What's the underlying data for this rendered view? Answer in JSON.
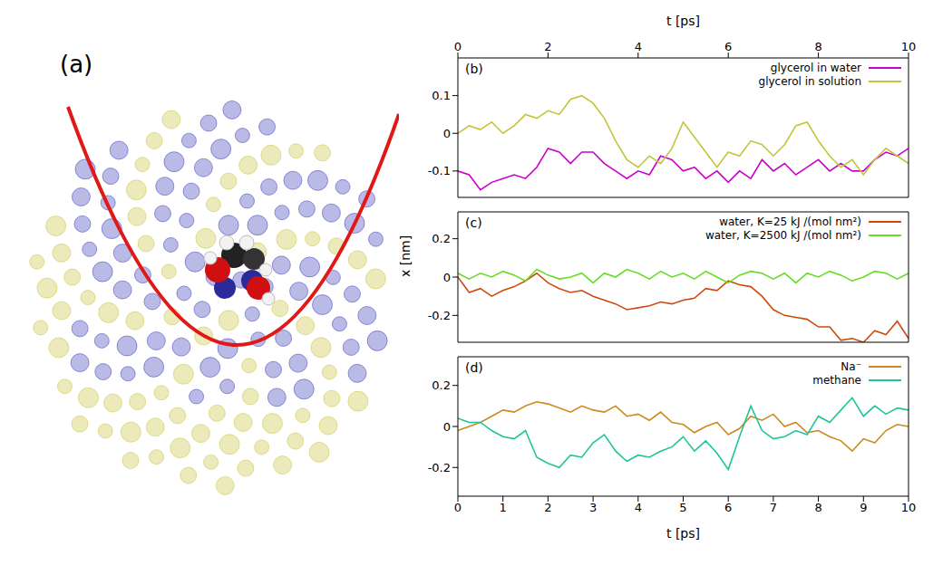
{
  "illustration": {
    "label": "(a)"
  },
  "chart_data": [
    {
      "type": "line",
      "title": "(b)",
      "x2label": "t [ps]",
      "x2ticks": [
        0,
        2,
        4,
        6,
        8,
        10
      ],
      "tick_labels": "y",
      "legend": "upper right",
      "x": [
        0,
        0.25,
        0.5,
        0.75,
        1,
        1.25,
        1.5,
        1.75,
        2,
        2.25,
        2.5,
        2.75,
        3,
        3.25,
        3.5,
        3.75,
        4,
        4.25,
        4.5,
        4.75,
        5,
        5.25,
        5.5,
        5.75,
        6,
        6.25,
        6.5,
        6.75,
        7,
        7.25,
        7.5,
        7.75,
        8,
        8.25,
        8.5,
        8.75,
        9,
        9.25,
        9.5,
        9.75,
        10
      ],
      "xlim": [
        0,
        10
      ],
      "xticks": [
        0,
        1,
        2,
        3,
        4,
        5,
        6,
        7,
        8,
        9,
        10
      ],
      "ylim": [
        -0.17,
        0.2
      ],
      "yticks": [
        -0.1,
        0,
        0.1
      ],
      "series": [
        {
          "name": "glycerol in water",
          "color": "#cc00cc",
          "values": [
            -0.1,
            -0.11,
            -0.15,
            -0.13,
            -0.12,
            -0.11,
            -0.12,
            -0.09,
            -0.04,
            -0.05,
            -0.08,
            -0.05,
            -0.05,
            -0.08,
            -0.1,
            -0.12,
            -0.1,
            -0.11,
            -0.06,
            -0.07,
            -0.1,
            -0.09,
            -0.12,
            -0.1,
            -0.13,
            -0.1,
            -0.12,
            -0.07,
            -0.1,
            -0.08,
            -0.11,
            -0.09,
            -0.07,
            -0.1,
            -0.08,
            -0.1,
            -0.1,
            -0.07,
            -0.05,
            -0.06,
            -0.04
          ]
        },
        {
          "name": "glycerol in solution",
          "color": "#c4c43a",
          "values": [
            0,
            0.02,
            0.01,
            0.03,
            0,
            0.02,
            0.05,
            0.04,
            0.06,
            0.05,
            0.09,
            0.1,
            0.08,
            0.04,
            -0.02,
            -0.07,
            -0.09,
            -0.06,
            -0.08,
            -0.04,
            0.03,
            -0.01,
            -0.05,
            -0.09,
            -0.05,
            -0.06,
            -0.02,
            -0.03,
            -0.06,
            -0.03,
            0.02,
            0.03,
            -0.02,
            -0.06,
            -0.09,
            -0.07,
            -0.11,
            -0.07,
            -0.04,
            -0.06,
            -0.08
          ]
        }
      ]
    },
    {
      "type": "line",
      "title": "(c)",
      "ylabel": "x [nm]",
      "tick_labels": "y",
      "legend": "upper right",
      "x": [
        0,
        0.25,
        0.5,
        0.75,
        1,
        1.25,
        1.5,
        1.75,
        2,
        2.25,
        2.5,
        2.75,
        3,
        3.25,
        3.5,
        3.75,
        4,
        4.25,
        4.5,
        4.75,
        5,
        5.25,
        5.5,
        5.75,
        6,
        6.25,
        6.5,
        6.75,
        7,
        7.25,
        7.5,
        7.75,
        8,
        8.25,
        8.5,
        8.75,
        9,
        9.25,
        9.5,
        9.75,
        10
      ],
      "xlim": [
        0,
        10
      ],
      "xticks": [
        0,
        1,
        2,
        3,
        4,
        5,
        6,
        7,
        8,
        9,
        10
      ],
      "ylim": [
        -0.34,
        0.34
      ],
      "yticks": [
        -0.2,
        0,
        0.2
      ],
      "series": [
        {
          "name": "water, K=25  kJ /(mol nm²)",
          "color": "#d04a10",
          "values": [
            0,
            -0.08,
            -0.06,
            -0.1,
            -0.07,
            -0.05,
            -0.02,
            0.02,
            -0.03,
            -0.06,
            -0.08,
            -0.07,
            -0.1,
            -0.12,
            -0.14,
            -0.17,
            -0.16,
            -0.15,
            -0.13,
            -0.14,
            -0.12,
            -0.11,
            -0.06,
            -0.07,
            -0.02,
            -0.04,
            -0.05,
            -0.1,
            -0.17,
            -0.2,
            -0.21,
            -0.22,
            -0.26,
            -0.26,
            -0.33,
            -0.32,
            -0.34,
            -0.28,
            -0.3,
            -0.23,
            -0.32
          ]
        },
        {
          "name": "water, K=2500  kJ /(mol nm²)",
          "color": "#66dd22",
          "values": [
            0.02,
            -0.01,
            0.02,
            0,
            0.03,
            0.01,
            -0.02,
            0.04,
            0.01,
            -0.01,
            0,
            0.02,
            -0.03,
            0.02,
            0,
            0.04,
            0.02,
            -0.01,
            0.03,
            0,
            0.02,
            -0.01,
            0.03,
            0,
            -0.03,
            0.01,
            0.03,
            0.02,
            -0.01,
            0.02,
            -0.03,
            0.02,
            0,
            0.03,
            0.01,
            -0.02,
            0,
            0.03,
            0.02,
            -0.01,
            0.02
          ]
        }
      ]
    },
    {
      "type": "line",
      "title": "(d)",
      "xlabel": "t [ps]",
      "legend": "upper right",
      "x": [
        0,
        0.25,
        0.5,
        0.75,
        1,
        1.25,
        1.5,
        1.75,
        2,
        2.25,
        2.5,
        2.75,
        3,
        3.25,
        3.5,
        3.75,
        4,
        4.25,
        4.5,
        4.75,
        5,
        5.25,
        5.5,
        5.75,
        6,
        6.25,
        6.5,
        6.75,
        7,
        7.25,
        7.5,
        7.75,
        8,
        8.25,
        8.5,
        8.75,
        9,
        9.25,
        9.5,
        9.75,
        10
      ],
      "xlim": [
        0,
        10
      ],
      "xticks": [
        0,
        1,
        2,
        3,
        4,
        5,
        6,
        7,
        8,
        9,
        10
      ],
      "ylim": [
        -0.34,
        0.34
      ],
      "yticks": [
        -0.2,
        0,
        0.2
      ],
      "series": [
        {
          "name": "Na⁻",
          "color": "#cc8a1e",
          "values": [
            -0.02,
            0,
            0.02,
            0.05,
            0.08,
            0.07,
            0.1,
            0.12,
            0.11,
            0.09,
            0.07,
            0.1,
            0.08,
            0.07,
            0.1,
            0.05,
            0.06,
            0.03,
            0.07,
            0.02,
            0.01,
            -0.03,
            0,
            0.02,
            -0.04,
            -0.01,
            0.05,
            0.03,
            0.06,
            0,
            0.02,
            -0.03,
            -0.02,
            -0.05,
            -0.07,
            -0.12,
            -0.06,
            -0.08,
            -0.02,
            0.01,
            0
          ]
        },
        {
          "name": "methane",
          "color": "#1fc49a",
          "values": [
            0.04,
            0.02,
            0.02,
            -0.02,
            -0.05,
            -0.06,
            -0.02,
            -0.15,
            -0.18,
            -0.2,
            -0.14,
            -0.15,
            -0.08,
            -0.04,
            -0.12,
            -0.17,
            -0.14,
            -0.15,
            -0.12,
            -0.1,
            -0.05,
            -0.12,
            -0.07,
            -0.13,
            -0.21,
            -0.05,
            0.1,
            -0.02,
            -0.06,
            -0.05,
            -0.02,
            -0.04,
            0.05,
            0.02,
            0.08,
            0.14,
            0.05,
            0.1,
            0.06,
            0.09,
            0.08
          ]
        }
      ]
    }
  ]
}
